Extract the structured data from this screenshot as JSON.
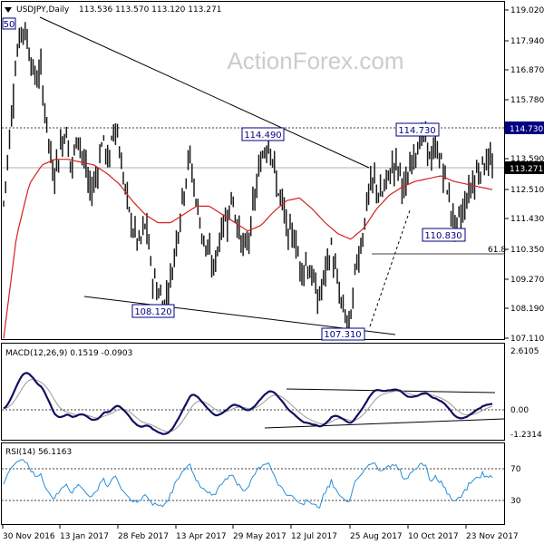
{
  "chart_data": [
    {
      "type": "candlestick",
      "title": "USDJPY,Daily",
      "ohlc_header": "113.536 113.570 113.120 113.271",
      "watermark": "ActionForex.com",
      "ylim": [
        107.11,
        119.02
      ],
      "y_ticks": [
        "119.020",
        "117.940",
        "116.870",
        "115.780",
        "114.730",
        "113.590",
        "112.510",
        "111.430",
        "110.350",
        "109.270",
        "108.190",
        "107.110"
      ],
      "x_ticks": [
        "30 Nov 2016",
        "13 Jan 2017",
        "28 Feb 2017",
        "13 Apr 2017",
        "29 May 2017",
        "12 Jul 2017",
        "25 Aug 2017",
        "10 Oct 2017",
        "23 Nov 2017"
      ],
      "last_price": "113.271",
      "resistance": "114.730",
      "ma_label": "50",
      "fib_label": "61.8",
      "annotations": [
        "114.490",
        "114.730",
        "110.830",
        "108.120",
        "107.310"
      ],
      "price_series": [
        112.0,
        114.5,
        117.2,
        118.5,
        117.8,
        116.5,
        116.8,
        114.8,
        113.0,
        113.8,
        114.8,
        113.2,
        114.6,
        113.5,
        112.4,
        113.0,
        114.4,
        113.4,
        115.1,
        113.5,
        112.0,
        111.0,
        110.5,
        111.3,
        109.4,
        108.8,
        108.4,
        109.2,
        110.8,
        112.3,
        113.8,
        112.3,
        111.0,
        110.2,
        109.6,
        110.9,
        111.5,
        112.2,
        111.0,
        110.2,
        111.2,
        112.8,
        113.9,
        114.4,
        112.8,
        112.0,
        110.8,
        110.9,
        109.6,
        109.9,
        109.2,
        108.5,
        109.5,
        110.4,
        109.0,
        108.0,
        107.5,
        109.8,
        110.8,
        112.4,
        112.8,
        112.2,
        112.8,
        113.5,
        113.2,
        112.4,
        113.6,
        114.2,
        114.5,
        113.6,
        114.0,
        113.3,
        112.2,
        111.1,
        111.6,
        112.3,
        112.9,
        113.3,
        113.6,
        113.3
      ],
      "ma50_series": [
        107.1,
        110.8,
        112.7,
        113.4,
        113.6,
        113.6,
        113.5,
        113.4,
        113.1,
        112.7,
        112.1,
        111.6,
        111.3,
        111.3,
        111.6,
        111.9,
        111.9,
        111.6,
        111.3,
        111.0,
        111.2,
        111.7,
        112.1,
        112.2,
        111.8,
        111.3,
        110.9,
        110.7,
        111.1,
        111.8,
        112.3,
        112.6,
        112.8,
        112.9,
        113.0,
        112.8,
        112.7,
        112.6,
        112.5
      ],
      "macd": {
        "label": "MACD(12,26,9) 0.1519 -0.0903",
        "ylim": [
          -1.2314,
          2.6105
        ],
        "y_ticks": [
          "2.6105",
          "0.00",
          "-1.2314"
        ]
      },
      "rsi": {
        "label": "RSI(14) 56.1163",
        "ylim": [
          0,
          100
        ],
        "y_ticks": [
          "70",
          "30"
        ]
      }
    }
  ]
}
